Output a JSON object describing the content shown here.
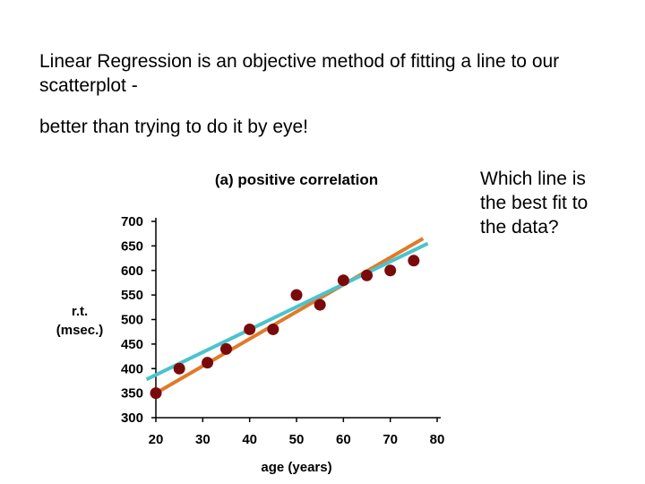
{
  "slide": {
    "intro_line1": "Linear Regression is an objective method of fitting a line to our scatterplot -",
    "intro_line2": "better than trying to do it by eye!",
    "question": "Which line is the best fit to the data?"
  },
  "chart_data": {
    "type": "scatter",
    "title": "(a) positive correlation",
    "xlabel": "age (years)",
    "ylabel_line1": "r.t.",
    "ylabel_line2": "(msec.)",
    "xlim": [
      20,
      80
    ],
    "ylim": [
      300,
      700
    ],
    "xticks": [
      20,
      30,
      40,
      50,
      60,
      70,
      80
    ],
    "yticks": [
      300,
      350,
      400,
      450,
      500,
      550,
      600,
      650,
      700
    ],
    "grid": false,
    "points": [
      {
        "x": 20,
        "y": 350
      },
      {
        "x": 25,
        "y": 400
      },
      {
        "x": 31,
        "y": 412
      },
      {
        "x": 35,
        "y": 440
      },
      {
        "x": 40,
        "y": 480
      },
      {
        "x": 45,
        "y": 480
      },
      {
        "x": 50,
        "y": 550
      },
      {
        "x": 55,
        "y": 530
      },
      {
        "x": 60,
        "y": 580
      },
      {
        "x": 65,
        "y": 590
      },
      {
        "x": 70,
        "y": 600
      },
      {
        "x": 75,
        "y": 620
      }
    ],
    "lines": [
      {
        "color": "#e07a2a",
        "x": [
          20,
          77
        ],
        "y": [
          350,
          665
        ]
      },
      {
        "color": "#4cc3cc",
        "x": [
          18,
          78
        ],
        "y": [
          378,
          655
        ]
      }
    ],
    "colors": {
      "points": "#7a0a0a",
      "axis": "#000000"
    }
  }
}
